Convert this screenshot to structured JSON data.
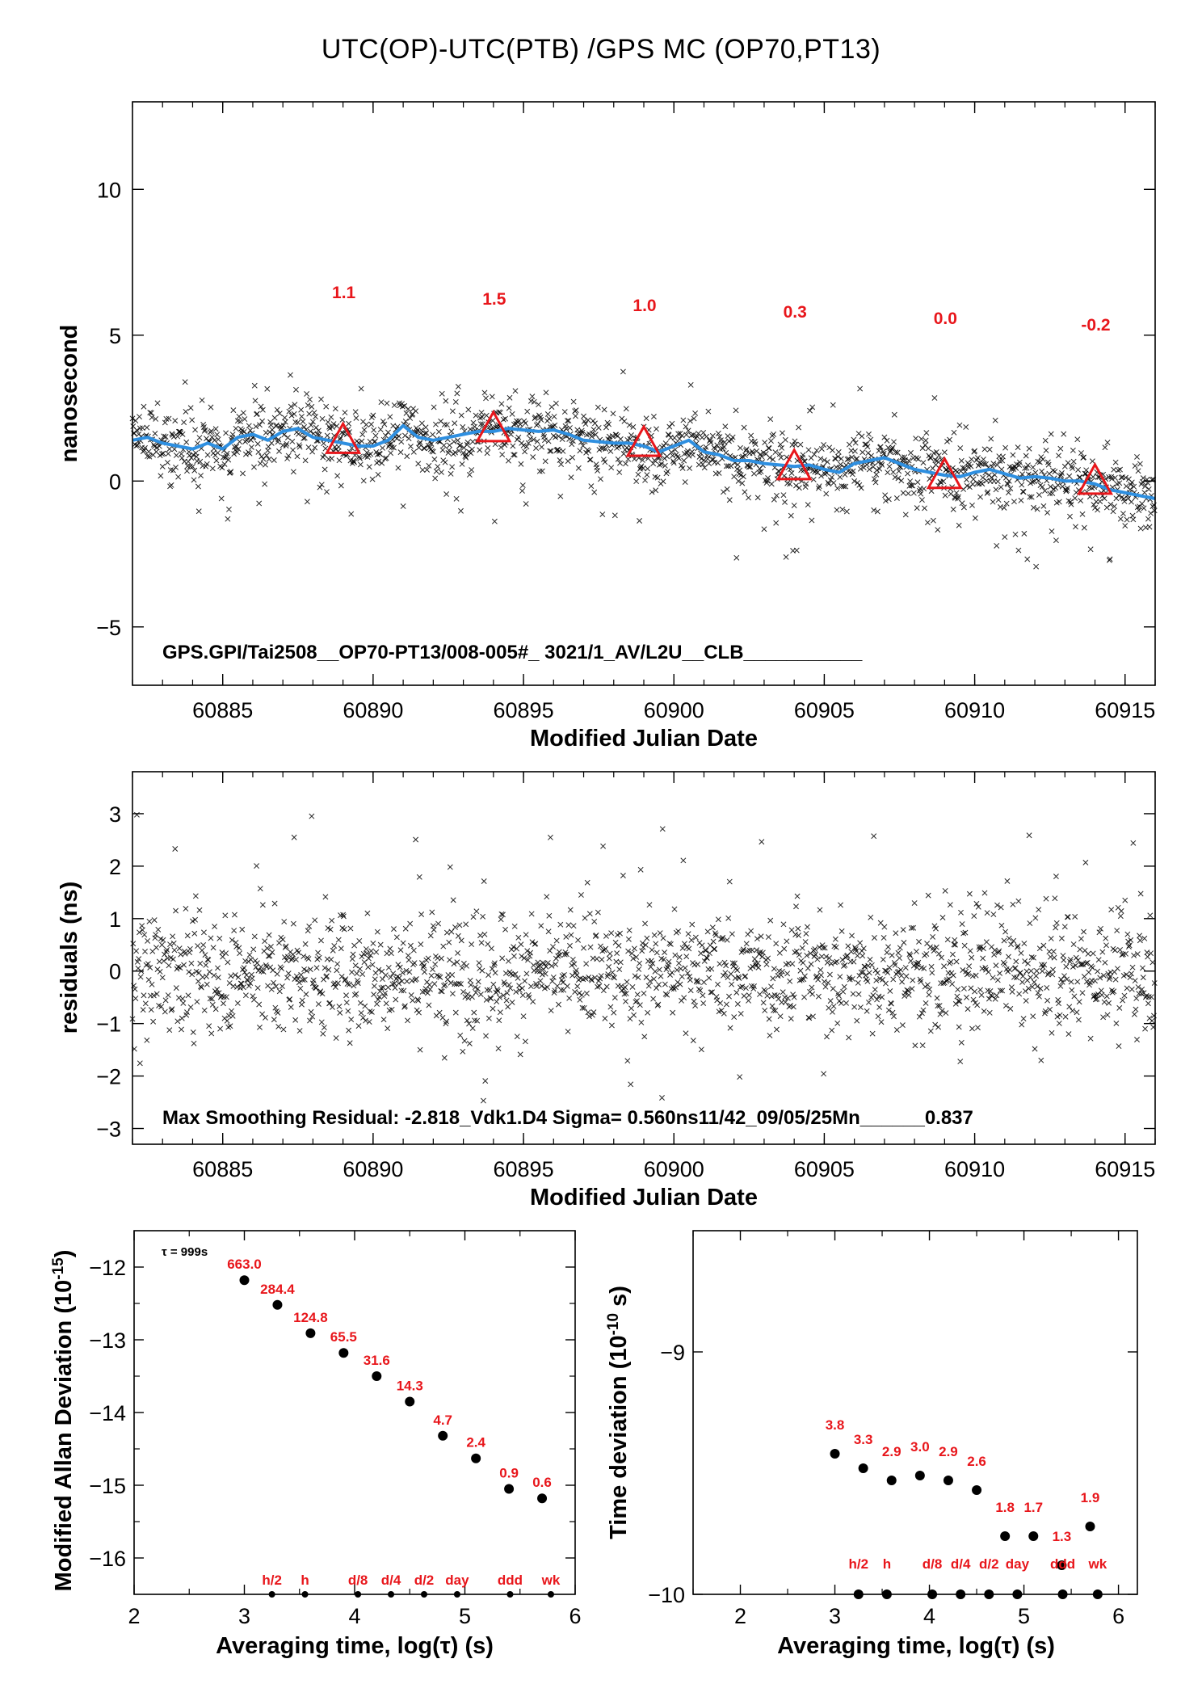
{
  "title": "UTC(OP)-UTC(PTB)  /GPS  MC  (OP70,PT13)",
  "colors": {
    "smooth_line": "#2e8fe0",
    "triangle": "#e8161b",
    "label_red": "#e8161b",
    "points": "#000000"
  },
  "chart_data": [
    {
      "id": "main",
      "type": "scatter",
      "xlabel": "Modified Julian Date",
      "ylabel": "nanosecond",
      "xlim": [
        60882,
        60916
      ],
      "ylim": [
        -7,
        13
      ],
      "xticks": [
        60885,
        60890,
        60895,
        60900,
        60905,
        60910,
        60915
      ],
      "yticks": [
        -5,
        0,
        5,
        10
      ],
      "annotation": "GPS.GPI/Tai2508__OP70-PT13/008-005#_  3021/1_AV/L2U__CLB___________",
      "smoothed_series": {
        "x": [
          60882,
          60882.5,
          60883,
          60883.5,
          60884,
          60884.5,
          60885,
          60885.5,
          60886,
          60886.5,
          60887,
          60887.5,
          60888,
          60888.5,
          60889,
          60889.5,
          60890,
          60890.5,
          60891,
          60891.5,
          60892,
          60892.5,
          60893,
          60893.5,
          60894,
          60894.5,
          60895,
          60895.5,
          60896,
          60896.5,
          60897,
          60897.5,
          60898,
          60898.5,
          60899,
          60899.5,
          60900,
          60900.5,
          60901,
          60901.5,
          60902,
          60902.5,
          60903,
          60903.5,
          60904,
          60904.5,
          60905,
          60905.5,
          60906,
          60906.5,
          60907,
          60907.5,
          60908,
          60908.5,
          60909,
          60909.5,
          60910,
          60910.5,
          60911,
          60911.5,
          60912,
          60912.5,
          60913,
          60913.5,
          60914,
          60914.5,
          60915,
          60915.5,
          60916
        ],
        "y": [
          1.4,
          1.5,
          1.3,
          1.2,
          1.1,
          1.3,
          1.1,
          1.5,
          1.6,
          1.4,
          1.7,
          1.8,
          1.5,
          1.4,
          1.3,
          1.2,
          1.2,
          1.4,
          1.9,
          1.5,
          1.4,
          1.5,
          1.6,
          1.7,
          1.7,
          1.8,
          1.75,
          1.7,
          1.75,
          1.6,
          1.4,
          1.35,
          1.3,
          1.3,
          1.2,
          1.0,
          1.2,
          1.4,
          1.0,
          0.9,
          0.7,
          0.7,
          0.6,
          0.55,
          0.5,
          0.55,
          0.4,
          0.3,
          0.6,
          0.7,
          0.8,
          0.6,
          0.4,
          0.3,
          0.2,
          0.15,
          0.3,
          0.4,
          0.25,
          0.1,
          0.15,
          0.1,
          0.0,
          0.0,
          -0.1,
          -0.3,
          -0.4,
          -0.5,
          -0.6
        ]
      },
      "triangles": {
        "x": [
          60889,
          60894,
          60899,
          60904,
          60909,
          60914
        ],
        "y": [
          1.3,
          1.7,
          1.2,
          0.4,
          0.1,
          -0.1
        ],
        "labels": [
          "1.1",
          "1.5",
          "1.0",
          "0.3",
          "0.0",
          "-0.2"
        ]
      },
      "scatter_note": "approx. 2 points per hour scattered about the smoothed series",
      "scatter_sigma": 0.56
    },
    {
      "id": "residuals",
      "type": "scatter",
      "xlabel": "Modified Julian Date",
      "ylabel": "residuals (ns)",
      "xlim": [
        60882,
        60916
      ],
      "ylim": [
        -3.3,
        3.8
      ],
      "xticks": [
        60885,
        60890,
        60895,
        60900,
        60905,
        60910,
        60915
      ],
      "yticks": [
        -3,
        -2,
        -1,
        0,
        1,
        2,
        3
      ],
      "annotation": "Max Smoothing Residual: -2.818_Vdk1.D4  Sigma= 0.560ns11/42_09/05/25Mn______0.837",
      "sigma": 0.56
    },
    {
      "id": "mdev",
      "type": "scatter",
      "xlabel": "Averaging time, log(τ) (s)",
      "ylabel": "Modified Allan Deviation (10-15)",
      "ylabel_main": "Modified Allan Deviation (10",
      "ylabel_exp": "-15",
      "ylabel_tail": ")",
      "xlim": [
        2,
        6
      ],
      "ylim": [
        -16.5,
        -11.5
      ],
      "xticks": [
        2,
        3,
        4,
        5,
        6
      ],
      "yticks": [
        -12,
        -13,
        -14,
        -15,
        -16
      ],
      "tau_note": "τ = 999s",
      "points": {
        "x": [
          3.0,
          3.3,
          3.6,
          3.9,
          4.2,
          4.5,
          4.8,
          5.1,
          5.4,
          5.7
        ],
        "y": [
          -12.18,
          -12.52,
          -12.91,
          -13.18,
          -13.5,
          -13.85,
          -14.32,
          -14.63,
          -15.05,
          -15.18
        ],
        "labels": [
          "663.0",
          "284.4",
          "124.8",
          "65.5",
          "31.6",
          "14.3",
          "4.7",
          "2.4",
          "0.9",
          "0.6"
        ]
      },
      "markers": {
        "x": [
          3.25,
          3.55,
          4.03,
          4.33,
          4.63,
          4.93,
          5.41,
          5.78
        ],
        "labels": [
          "h/2",
          "h",
          "d/8",
          "d/4",
          "d/2",
          "day",
          "ddd",
          "wk"
        ]
      }
    },
    {
      "id": "tdev",
      "type": "scatter",
      "xlabel": "Averaging time, log(τ) (s)",
      "ylabel": "Time deviation (10-10 s)",
      "ylabel_main": "Time deviation (10",
      "ylabel_exp": "-10",
      "ylabel_tail": " s)",
      "xlim": [
        1.5,
        6.2
      ],
      "ylim": [
        -10,
        -8.5
      ],
      "xticks": [
        2,
        3,
        4,
        5,
        6
      ],
      "yticks": [
        -9,
        -10
      ],
      "points": {
        "x": [
          3.0,
          3.3,
          3.6,
          3.9,
          4.2,
          4.5,
          4.8,
          5.1,
          5.4,
          5.7
        ],
        "y": [
          -9.42,
          -9.48,
          -9.53,
          -9.51,
          -9.53,
          -9.57,
          -9.76,
          -9.76,
          -9.88,
          -9.72
        ],
        "labels": [
          "3.8",
          "3.3",
          "2.9",
          "3.0",
          "2.9",
          "2.6",
          "1.8",
          "1.7",
          "1.3",
          "1.9"
        ]
      },
      "markers": {
        "x": [
          3.25,
          3.55,
          4.03,
          4.33,
          4.63,
          4.93,
          5.41,
          5.78
        ],
        "labels": [
          "h/2",
          "h",
          "d/8",
          "d/4",
          "d/2",
          "day",
          "ddd",
          "wk"
        ]
      }
    }
  ]
}
